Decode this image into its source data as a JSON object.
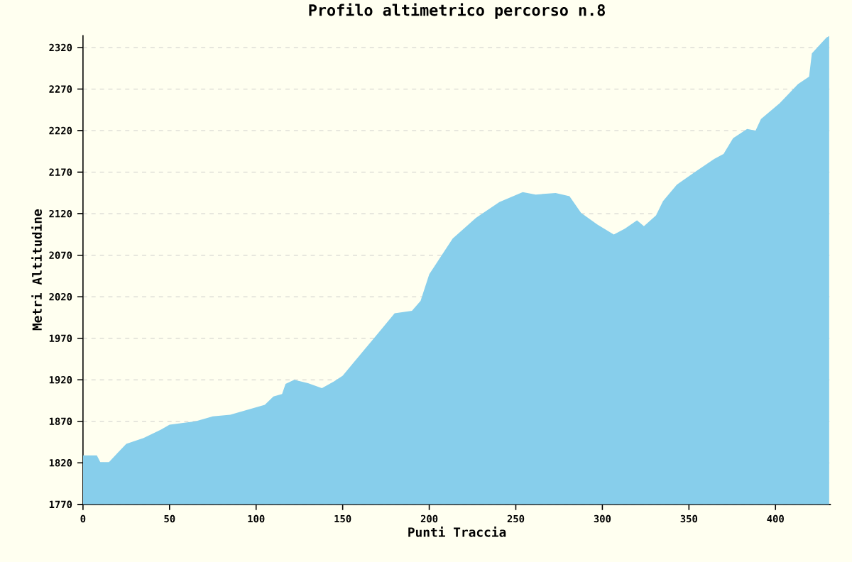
{
  "chart_data": {
    "type": "area",
    "title": "Profilo altimetrico percorso n.8",
    "xlabel": "Punti Traccia",
    "ylabel": "Metri Altitudine",
    "color": "#87ceeb",
    "grid": "y",
    "xlim": [
      0,
      432
    ],
    "ylim": [
      1770,
      2335
    ],
    "xticks": [
      0,
      50,
      100,
      150,
      200,
      250,
      300,
      350,
      400
    ],
    "yticks": [
      1770,
      1820,
      1870,
      1920,
      1970,
      2020,
      2070,
      2120,
      2170,
      2220,
      2270,
      2320
    ],
    "x": [
      0,
      8,
      10,
      15,
      20,
      25,
      35,
      45,
      50,
      65,
      75,
      85,
      95,
      105,
      110,
      115,
      117,
      122,
      130,
      138,
      145,
      150,
      160,
      170,
      180,
      190,
      195,
      200,
      213.5,
      227,
      240.5,
      254,
      261.5,
      273,
      281,
      287.7,
      297,
      306.6,
      313,
      320,
      324,
      331,
      335,
      343,
      354,
      364.6,
      370,
      375.5,
      383.6,
      388.5,
      391.6,
      402.4,
      413,
      419.4,
      421,
      429.4,
      431
    ],
    "values": [
      1829,
      1829,
      1821,
      1821,
      1832,
      1843,
      1850,
      1860,
      1866,
      1870,
      1876,
      1878,
      1884,
      1890,
      1900,
      1903,
      1915,
      1920,
      1916,
      1910,
      1918,
      1925,
      1950,
      1975,
      2000,
      2003,
      2015,
      2047,
      2090,
      2115,
      2134,
      2146,
      2143,
      2145,
      2141,
      2121,
      2107,
      2095,
      2102,
      2112,
      2105,
      2118,
      2135,
      2155,
      2171,
      2186,
      2192,
      2211,
      2222,
      2220,
      2234,
      2253,
      2276,
      2285,
      2313,
      2332,
      2334
    ]
  }
}
